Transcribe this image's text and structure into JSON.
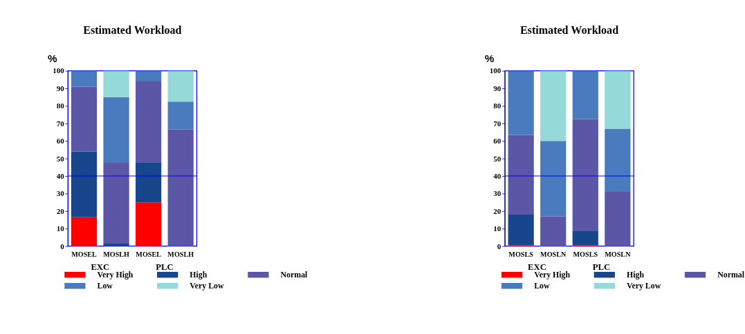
{
  "chart_data": [
    {
      "type": "bar",
      "title": "Estimated Workload",
      "ylabel": "%",
      "stacked": true,
      "categories": [
        "MOSEL",
        "MOSLH",
        "MOSEL",
        "MOSLH"
      ],
      "annotations": [
        "EXC",
        "PLC"
      ],
      "series": [
        {
          "name": "Very High",
          "color": "#ff0000",
          "values": [
            16.5,
            0,
            25,
            0
          ]
        },
        {
          "name": "High",
          "color": "#17468c",
          "values": [
            37.5,
            1.5,
            22.5,
            0
          ]
        },
        {
          "name": "Normal",
          "color": "#5b57a6",
          "values": [
            37,
            46,
            46.5,
            66.5
          ]
        },
        {
          "name": "Low",
          "color": "#4a7bbf",
          "values": [
            9,
            37.5,
            6,
            16
          ]
        },
        {
          "name": "Very Low",
          "color": "#93dad8",
          "values": [
            0,
            15,
            0,
            17.5
          ]
        }
      ],
      "ylim": [
        0,
        100
      ],
      "yticks": [
        0,
        10,
        20,
        30,
        40,
        50,
        60,
        70,
        80,
        90,
        100
      ],
      "ref_lines": [
        {
          "axis": "y",
          "value": 40,
          "color": "#0000ff"
        }
      ],
      "legend": "bottom",
      "grid": false
    },
    {
      "type": "bar",
      "title": "Estimated Workload",
      "ylabel": "%",
      "stacked": true,
      "categories": [
        "MOSLS",
        "MOSLN",
        "MOSLS",
        "MOSLN"
      ],
      "annotations": [
        "EXC",
        "PLC"
      ],
      "series": [
        {
          "name": "Very High",
          "color": "#ff0000",
          "values": [
            0.5,
            0,
            0.5,
            0
          ]
        },
        {
          "name": "High",
          "color": "#17468c",
          "values": [
            17.5,
            0,
            8,
            0
          ]
        },
        {
          "name": "Normal",
          "color": "#5b57a6",
          "values": [
            45.5,
            17,
            64,
            31
          ]
        },
        {
          "name": "Low",
          "color": "#4a7bbf",
          "values": [
            36.5,
            43,
            27.5,
            36
          ]
        },
        {
          "name": "Very Low",
          "color": "#93dad8",
          "values": [
            0,
            40,
            0,
            33
          ]
        }
      ],
      "ylim": [
        0,
        100
      ],
      "yticks": [
        0,
        10,
        20,
        30,
        40,
        50,
        60,
        70,
        80,
        90,
        100
      ],
      "ref_lines": [
        {
          "axis": "y",
          "value": 40,
          "color": "#0000ff"
        }
      ],
      "legend": "bottom",
      "grid": false
    }
  ]
}
